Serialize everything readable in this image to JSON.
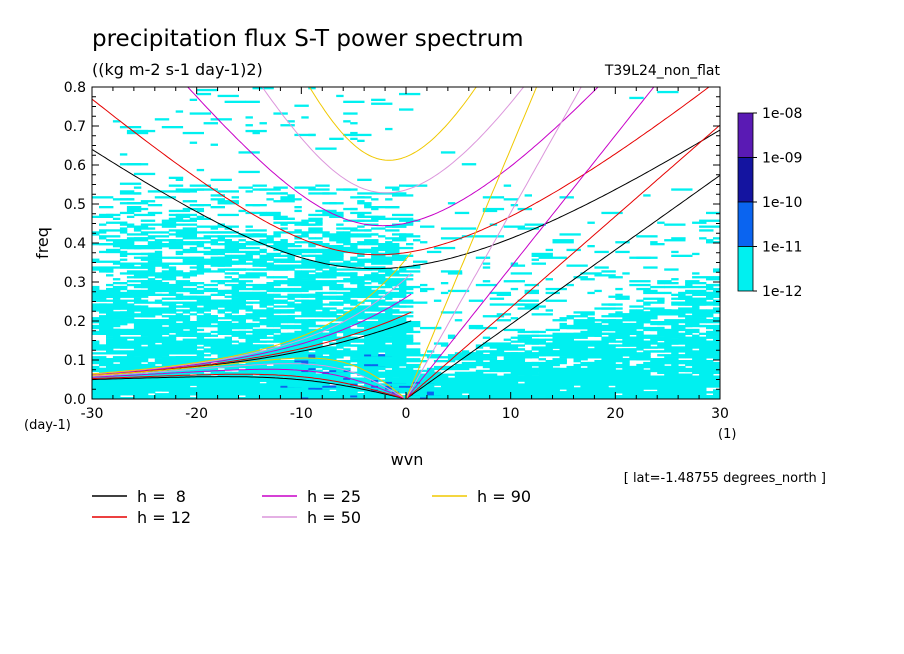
{
  "chart_data": {
    "type": "heatmap",
    "title": "precipitation flux S-T power spectrum",
    "subtitle": "((kg m-2 s-1 day-1)2)",
    "run_label": "T39L24_non_flat",
    "xlabel": "wvn",
    "ylabel": "freq",
    "x_unit": "(1)",
    "y_unit": "(day-1)",
    "xlim": [
      -30,
      30
    ],
    "ylim": [
      0,
      0.8
    ],
    "x_ticks": [
      "-30",
      "-20",
      "-10",
      "0",
      "10",
      "20",
      "30"
    ],
    "y_ticks": [
      "0.0",
      "0.1",
      "0.2",
      "0.3",
      "0.4",
      "0.5",
      "0.6",
      "0.7",
      "0.8"
    ],
    "lat_note": "[ lat=-1.48755 degrees_north ]",
    "colorbar": {
      "labels": [
        "1e-08",
        "1e-09",
        "1e-10",
        "1e-11",
        "1e-12"
      ],
      "colors": [
        "#5a1ab4",
        "#1414a0",
        "#0a64f0",
        "#00f0f0"
      ]
    },
    "heatmap_color": "#00f0f0",
    "heatmap_accent": "#0a64f0",
    "dispersion_curves": [
      {
        "label": "h =  8",
        "h": 8,
        "color": "#000000"
      },
      {
        "label": "h = 12",
        "h": 12,
        "color": "#e60000"
      },
      {
        "label": "h = 25",
        "h": 25,
        "color": "#c800c8"
      },
      {
        "label": "h = 50",
        "h": 50,
        "color": "#dc96dc"
      },
      {
        "label": "h = 90",
        "h": 90,
        "color": "#f0c800"
      }
    ]
  }
}
